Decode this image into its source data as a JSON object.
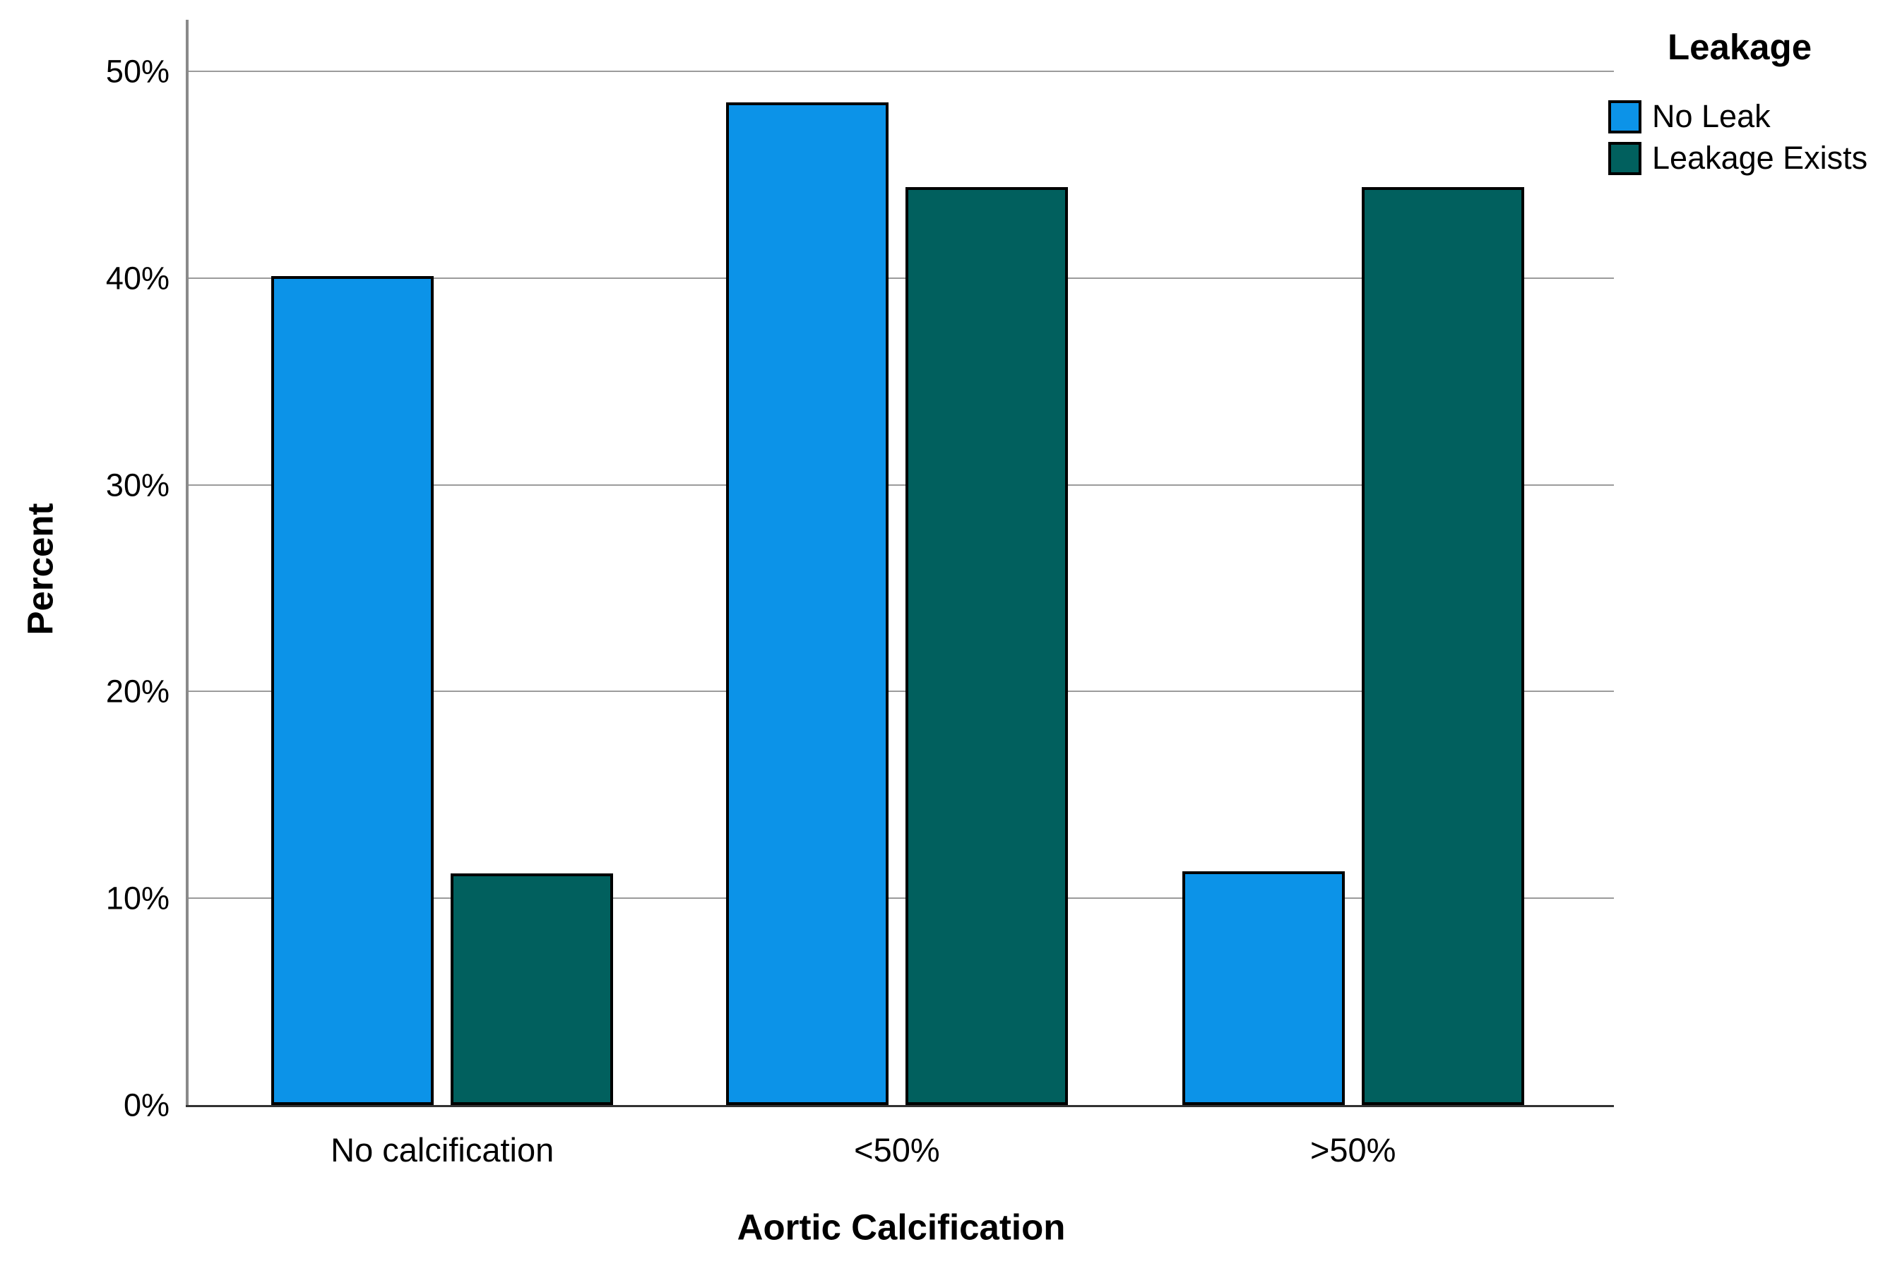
{
  "chart_data": {
    "type": "bar",
    "title": "",
    "xlabel": "Aortic Calcification",
    "ylabel": "Percent",
    "legend_title": "Leakage",
    "legend_position": "top-right",
    "grid": "horizontal",
    "categories": [
      "No calcification",
      "<50%",
      ">50%"
    ],
    "series": [
      {
        "name": "No Leak",
        "color": "#0c93e8",
        "values": [
          40.1,
          48.5,
          11.3
        ]
      },
      {
        "name": "Leakage Exists",
        "color": "#01605e",
        "values": [
          11.2,
          44.4,
          44.4
        ]
      }
    ],
    "y_ticks": [
      "0%",
      "10%",
      "20%",
      "30%",
      "40%",
      "50%"
    ],
    "y_tick_values": [
      0,
      10,
      20,
      30,
      40,
      50
    ],
    "ylim": [
      0,
      52.5
    ]
  }
}
